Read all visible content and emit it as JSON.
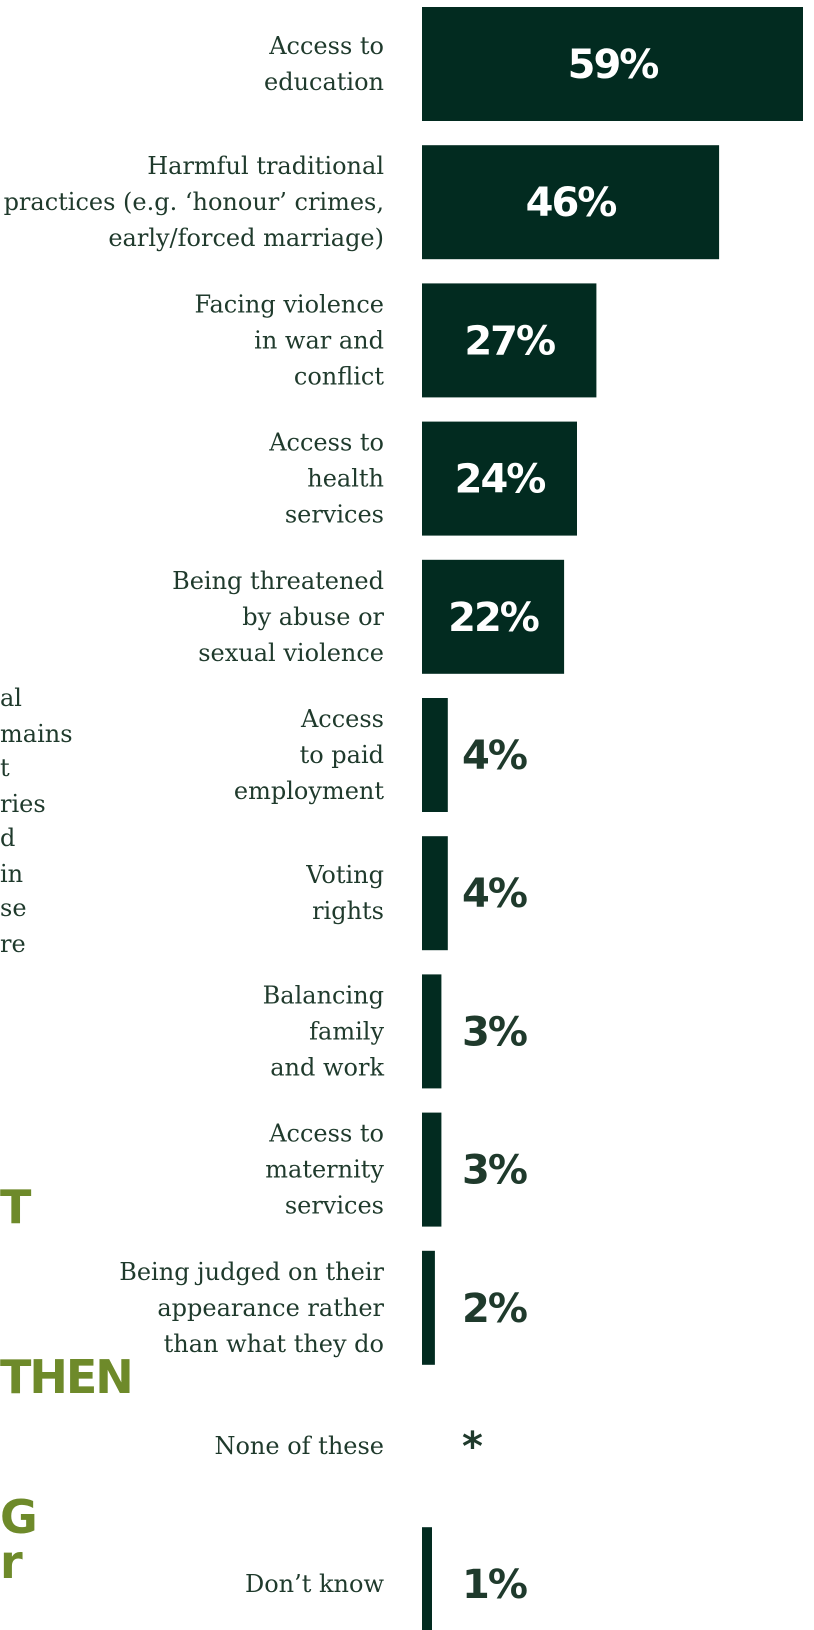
{
  "side_panel": {
    "text_lines": [
      "al",
      "mains",
      "t",
      "ries",
      "d",
      " in",
      "se",
      "re"
    ],
    "headings": [
      "T",
      "THEN",
      "G",
      "r"
    ]
  },
  "colors": {
    "bar": "#022b20",
    "bar_value_text": "#ffffff",
    "outside_value_text": "#1f3a2c",
    "label_text": "#1f3a2c",
    "side_heading": "#6e8a2a"
  },
  "chart_data": {
    "type": "bar",
    "orientation": "horizontal",
    "title": "",
    "xlabel": "",
    "ylabel": "",
    "xlim": [
      0,
      60
    ],
    "grid": false,
    "legend": "none",
    "categories": [
      [
        "Access to",
        "education"
      ],
      [
        "Harmful traditional",
        "practices (e.g. ‘honour’ crimes,",
        "early/forced marriage)"
      ],
      [
        "Facing violence",
        "in war and",
        "conflict"
      ],
      [
        "Access to",
        "health",
        "services"
      ],
      [
        "Being threatened",
        "by abuse or",
        "sexual violence"
      ],
      [
        "Access",
        "to paid",
        "employment"
      ],
      [
        "Voting",
        "rights"
      ],
      [
        "Balancing",
        "family",
        "and work"
      ],
      [
        "Access to",
        "maternity",
        "services"
      ],
      [
        "Being judged on their",
        "appearance rather",
        "than what they do"
      ],
      [
        "None of these"
      ],
      [
        "Don’t know"
      ]
    ],
    "values": [
      59,
      46,
      27,
      24,
      22,
      4,
      4,
      3,
      3,
      2,
      0,
      1
    ],
    "value_labels": [
      "59%",
      "46%",
      "27%",
      "24%",
      "22%",
      "4%",
      "4%",
      "3%",
      "3%",
      "2%",
      "*",
      "1%"
    ]
  }
}
